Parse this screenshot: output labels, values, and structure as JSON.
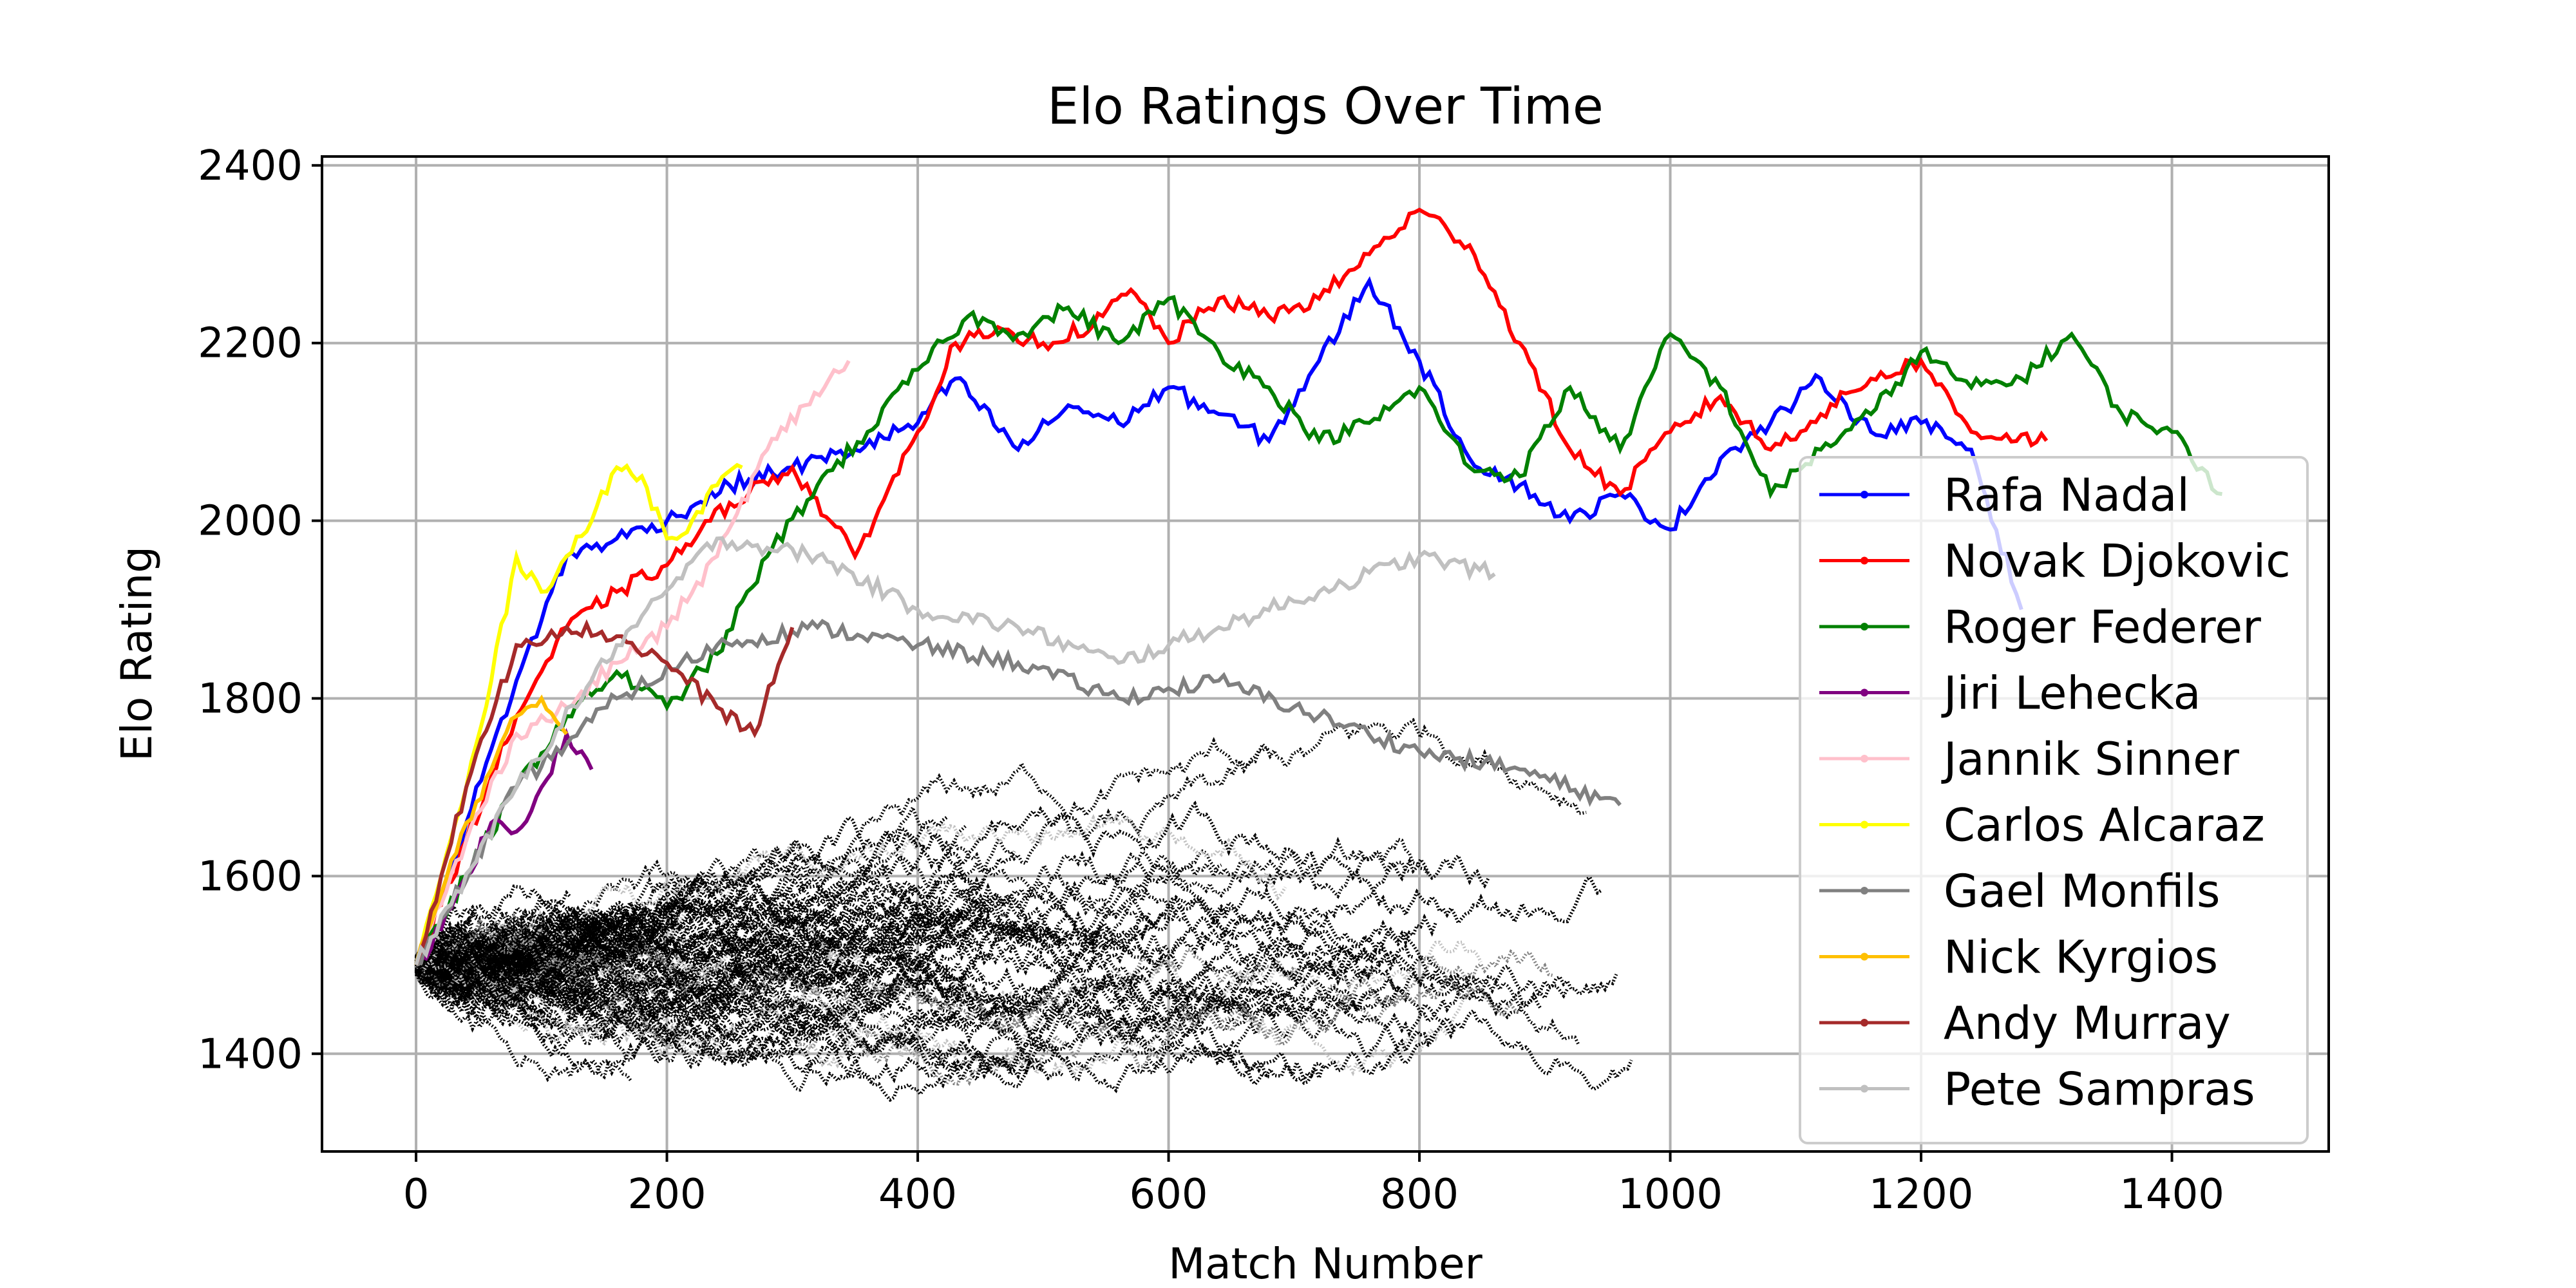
{
  "chart_data": {
    "type": "line",
    "title": "Elo Ratings Over Time",
    "xlabel": "Match Number",
    "ylabel": "Elo Rating",
    "xlim": [
      -75,
      1525
    ],
    "ylim": [
      1290,
      2410
    ],
    "xticks": [
      0,
      200,
      400,
      600,
      800,
      1000,
      1200,
      1400
    ],
    "yticks": [
      1400,
      1600,
      1800,
      2000,
      2200,
      2400
    ],
    "grid": true,
    "legend_position": "right",
    "background_players": {
      "color": "#000000",
      "description_colors": [
        "#000000",
        "#808080",
        "#c0c0c0"
      ]
    },
    "series": [
      {
        "name": "Rafa Nadal",
        "color": "#0000ff",
        "x": [
          0,
          40,
          80,
          120,
          160,
          200,
          250,
          300,
          350,
          400,
          430,
          480,
          520,
          560,
          600,
          640,
          680,
          720,
          760,
          800,
          840,
          880,
          920,
          960,
          1000,
          1040,
          1080,
          1120,
          1160,
          1200,
          1240,
          1280
        ],
        "y": [
          1500,
          1660,
          1820,
          1960,
          1980,
          2000,
          2040,
          2060,
          2080,
          2110,
          2160,
          2080,
          2130,
          2110,
          2150,
          2120,
          2090,
          2180,
          2270,
          2180,
          2070,
          2040,
          2000,
          2030,
          1990,
          2070,
          2110,
          2160,
          2100,
          2110,
          2080,
          1900
        ]
      },
      {
        "name": "Novak Djokovic",
        "color": "#ff0000",
        "x": [
          0,
          40,
          80,
          120,
          160,
          200,
          250,
          300,
          350,
          400,
          430,
          460,
          500,
          540,
          570,
          600,
          640,
          680,
          720,
          760,
          800,
          840,
          880,
          920,
          960,
          1000,
          1040,
          1080,
          1120,
          1160,
          1200,
          1240,
          1300
        ],
        "y": [
          1500,
          1640,
          1780,
          1880,
          1920,
          1950,
          2020,
          2060,
          1960,
          2100,
          2200,
          2210,
          2200,
          2220,
          2260,
          2200,
          2250,
          2230,
          2250,
          2300,
          2350,
          2310,
          2200,
          2080,
          2030,
          2100,
          2140,
          2080,
          2120,
          2160,
          2180,
          2100,
          2090
        ]
      },
      {
        "name": "Roger Federer",
        "color": "#008000",
        "x": [
          0,
          40,
          80,
          120,
          160,
          200,
          240,
          280,
          320,
          360,
          400,
          440,
          480,
          520,
          560,
          600,
          640,
          680,
          720,
          760,
          800,
          840,
          880,
          920,
          960,
          1000,
          1040,
          1080,
          1120,
          1160,
          1200,
          1240,
          1280,
          1320,
          1360,
          1400,
          1440
        ],
        "y": [
          1500,
          1600,
          1700,
          1780,
          1830,
          1790,
          1850,
          1960,
          2040,
          2100,
          2170,
          2230,
          2210,
          2240,
          2200,
          2250,
          2190,
          2150,
          2090,
          2110,
          2150,
          2060,
          2050,
          2150,
          2080,
          2210,
          2150,
          2030,
          2080,
          2120,
          2190,
          2150,
          2160,
          2210,
          2120,
          2100,
          2030
        ]
      },
      {
        "name": "Jiri Lehecka",
        "color": "#800080",
        "x": [
          0,
          20,
          40,
          60,
          80,
          100,
          120,
          140
        ],
        "y": [
          1500,
          1540,
          1600,
          1660,
          1650,
          1700,
          1760,
          1720
        ]
      },
      {
        "name": "Jannik Sinner",
        "color": "#ffc0cb",
        "x": [
          0,
          40,
          80,
          120,
          160,
          200,
          240,
          280,
          310,
          345
        ],
        "y": [
          1500,
          1640,
          1760,
          1790,
          1840,
          1880,
          1960,
          2080,
          2130,
          2180
        ]
      },
      {
        "name": "Carlos Alcaraz",
        "color": "#ffff00",
        "x": [
          0,
          20,
          40,
          60,
          80,
          100,
          120,
          140,
          160,
          180,
          200,
          220,
          240,
          260
        ],
        "y": [
          1500,
          1600,
          1700,
          1820,
          1960,
          1920,
          1960,
          2000,
          2060,
          2050,
          1980,
          2000,
          2040,
          2060
        ]
      },
      {
        "name": "Gael Monfils",
        "color": "#808080",
        "x": [
          0,
          80,
          160,
          240,
          320,
          400,
          480,
          560,
          640,
          720,
          800,
          880,
          960
        ],
        "y": [
          1500,
          1700,
          1800,
          1860,
          1880,
          1860,
          1840,
          1800,
          1820,
          1780,
          1740,
          1720,
          1680
        ]
      },
      {
        "name": "Nick Kyrgios",
        "color": "#ffc000",
        "x": [
          0,
          20,
          40,
          60,
          80,
          100,
          120
        ],
        "y": [
          1500,
          1580,
          1660,
          1720,
          1780,
          1800,
          1760
        ]
      },
      {
        "name": "Andy Murray",
        "color": "#a52a2a",
        "x": [
          0,
          40,
          80,
          120,
          160,
          200,
          240,
          270,
          300
        ],
        "y": [
          1500,
          1700,
          1860,
          1880,
          1870,
          1840,
          1790,
          1760,
          1880
        ]
      },
      {
        "name": "Pete Sampras",
        "color": "#c0c0c0",
        "x": [
          0,
          80,
          160,
          240,
          320,
          400,
          480,
          560,
          640,
          720,
          800,
          860
        ],
        "y": [
          1500,
          1700,
          1860,
          1980,
          1960,
          1900,
          1880,
          1840,
          1880,
          1920,
          1960,
          1940
        ]
      }
    ]
  }
}
